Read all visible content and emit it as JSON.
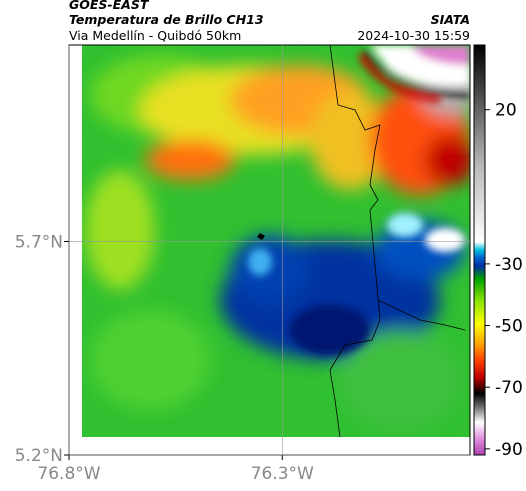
{
  "header": {
    "source": "GOES-EAST",
    "title": "Temperatura de Brillo CH13",
    "agency": "SIATA",
    "subtitle": "Via Medellín - Quibdó 50km",
    "timestamp": "2024-10-30 15:59"
  },
  "map": {
    "xlim": [
      -76.8,
      -75.86
    ],
    "ylim": [
      5.2,
      6.16
    ],
    "xticks": [
      {
        "value": -76.8,
        "label": "76.8°W"
      },
      {
        "value": -76.3,
        "label": "76.3°W"
      }
    ],
    "yticks": [
      {
        "value": 5.2,
        "label": "5.2°N"
      },
      {
        "value": 5.7,
        "label": "5.7°N"
      }
    ],
    "grid": true
  },
  "colorbar": {
    "lim": [
      -92,
      41
    ],
    "ticks": [
      20,
      -30,
      -50,
      -70,
      -90
    ]
  }
}
